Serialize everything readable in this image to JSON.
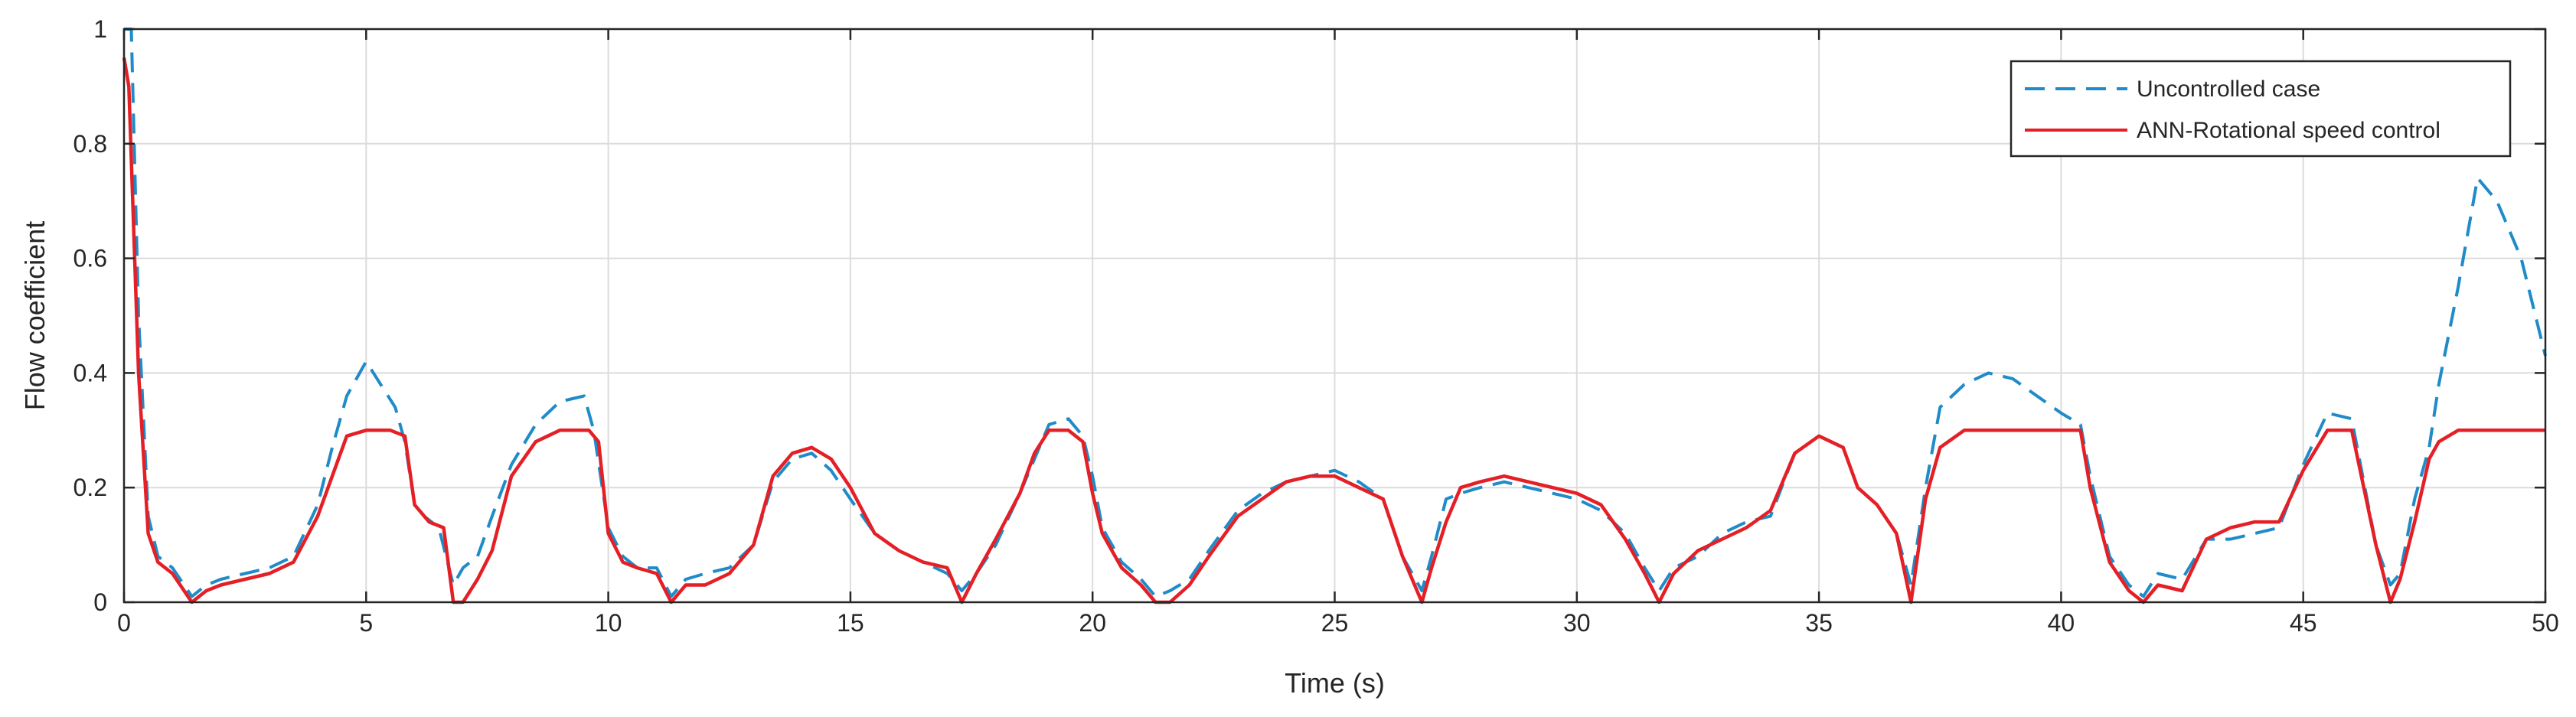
{
  "chart_data": {
    "type": "line",
    "title": "",
    "xlabel": "Time (s)",
    "ylabel": "Flow coefficient",
    "xlim": [
      0,
      50
    ],
    "ylim": [
      0,
      1
    ],
    "xticks": [
      0,
      5,
      10,
      15,
      20,
      25,
      30,
      35,
      40,
      45,
      50
    ],
    "yticks": [
      0,
      0.2,
      0.4,
      0.6,
      0.8,
      1
    ],
    "xtick_labels": [
      "0",
      "5",
      "10",
      "15",
      "20",
      "25",
      "30",
      "35",
      "40",
      "45",
      "50"
    ],
    "ytick_labels": [
      "0",
      "0.2",
      "0.4",
      "0.6",
      "0.8",
      "1"
    ],
    "grid": true,
    "legend_position": "top-right",
    "series": [
      {
        "name": "Uncontrolled case",
        "color": "#1f8bc8",
        "dash": "dashed",
        "points": [
          [
            0,
            1
          ],
          [
            0.15,
            1
          ],
          [
            0.3,
            0.5
          ],
          [
            0.5,
            0.15
          ],
          [
            0.7,
            0.08
          ],
          [
            1,
            0.06
          ],
          [
            1.4,
            0.01
          ],
          [
            1.7,
            0.03
          ],
          [
            2,
            0.04
          ],
          [
            2.5,
            0.05
          ],
          [
            3,
            0.06
          ],
          [
            3.5,
            0.08
          ],
          [
            4,
            0.17
          ],
          [
            4.3,
            0.27
          ],
          [
            4.6,
            0.36
          ],
          [
            5,
            0.42
          ],
          [
            5.3,
            0.38
          ],
          [
            5.6,
            0.34
          ],
          [
            5.8,
            0.28
          ],
          [
            6,
            0.17
          ],
          [
            6.2,
            0.15
          ],
          [
            6.5,
            0.13
          ],
          [
            6.8,
            0.03
          ],
          [
            7,
            0.06
          ],
          [
            7.3,
            0.08
          ],
          [
            7.6,
            0.15
          ],
          [
            8,
            0.24
          ],
          [
            8.5,
            0.31
          ],
          [
            9,
            0.35
          ],
          [
            9.5,
            0.36
          ],
          [
            9.7,
            0.3
          ],
          [
            10,
            0.13
          ],
          [
            10.3,
            0.08
          ],
          [
            10.6,
            0.06
          ],
          [
            11,
            0.06
          ],
          [
            11.3,
            0.01
          ],
          [
            11.6,
            0.04
          ],
          [
            12,
            0.05
          ],
          [
            12.5,
            0.06
          ],
          [
            13,
            0.1
          ],
          [
            13.4,
            0.21
          ],
          [
            13.8,
            0.25
          ],
          [
            14.2,
            0.26
          ],
          [
            14.6,
            0.23
          ],
          [
            15,
            0.18
          ],
          [
            15.5,
            0.12
          ],
          [
            16,
            0.09
          ],
          [
            16.5,
            0.07
          ],
          [
            17,
            0.05
          ],
          [
            17.3,
            0.02
          ],
          [
            17.6,
            0.05
          ],
          [
            18,
            0.1
          ],
          [
            18.5,
            0.19
          ],
          [
            18.8,
            0.25
          ],
          [
            19.1,
            0.31
          ],
          [
            19.5,
            0.32
          ],
          [
            19.8,
            0.29
          ],
          [
            20,
            0.22
          ],
          [
            20.2,
            0.13
          ],
          [
            20.6,
            0.07
          ],
          [
            21,
            0.04
          ],
          [
            21.3,
            0.01
          ],
          [
            21.6,
            0.02
          ],
          [
            22,
            0.04
          ],
          [
            22.4,
            0.09
          ],
          [
            23,
            0.16
          ],
          [
            23.5,
            0.19
          ],
          [
            24,
            0.21
          ],
          [
            24.5,
            0.22
          ],
          [
            25,
            0.23
          ],
          [
            25.5,
            0.21
          ],
          [
            26,
            0.18
          ],
          [
            26.4,
            0.08
          ],
          [
            26.8,
            0.02
          ],
          [
            27,
            0.08
          ],
          [
            27.3,
            0.18
          ],
          [
            27.6,
            0.19
          ],
          [
            28,
            0.2
          ],
          [
            28.5,
            0.21
          ],
          [
            29,
            0.2
          ],
          [
            29.5,
            0.19
          ],
          [
            30,
            0.18
          ],
          [
            30.5,
            0.16
          ],
          [
            31,
            0.12
          ],
          [
            31.4,
            0.06
          ],
          [
            31.7,
            0.02
          ],
          [
            32,
            0.06
          ],
          [
            32.5,
            0.08
          ],
          [
            33,
            0.12
          ],
          [
            33.5,
            0.14
          ],
          [
            34,
            0.15
          ],
          [
            34.5,
            0.26
          ],
          [
            35,
            0.29
          ],
          [
            35.5,
            0.27
          ],
          [
            35.8,
            0.2
          ],
          [
            36.2,
            0.17
          ],
          [
            36.6,
            0.12
          ],
          [
            36.9,
            0.03
          ],
          [
            37.2,
            0.2
          ],
          [
            37.5,
            0.34
          ],
          [
            38,
            0.38
          ],
          [
            38.5,
            0.4
          ],
          [
            39,
            0.39
          ],
          [
            39.5,
            0.36
          ],
          [
            40,
            0.33
          ],
          [
            40.4,
            0.31
          ],
          [
            40.6,
            0.22
          ],
          [
            41,
            0.08
          ],
          [
            41.4,
            0.03
          ],
          [
            41.7,
            0.01
          ],
          [
            42,
            0.05
          ],
          [
            42.5,
            0.04
          ],
          [
            43,
            0.11
          ],
          [
            43.5,
            0.11
          ],
          [
            44,
            0.12
          ],
          [
            44.5,
            0.13
          ],
          [
            45,
            0.24
          ],
          [
            45.5,
            0.33
          ],
          [
            46,
            0.32
          ],
          [
            46.5,
            0.1
          ],
          [
            46.8,
            0.03
          ],
          [
            47,
            0.05
          ],
          [
            47.3,
            0.18
          ],
          [
            47.6,
            0.27
          ],
          [
            47.8,
            0.38
          ],
          [
            48.2,
            0.55
          ],
          [
            48.6,
            0.74
          ],
          [
            49,
            0.7
          ],
          [
            49.5,
            0.6
          ],
          [
            50,
            0.43
          ]
        ]
      },
      {
        "name": "ANN-Rotational speed control",
        "color": "#e41f26",
        "dash": "solid",
        "points": [
          [
            0,
            0.95
          ],
          [
            0.1,
            0.9
          ],
          [
            0.3,
            0.4
          ],
          [
            0.5,
            0.12
          ],
          [
            0.7,
            0.07
          ],
          [
            1,
            0.05
          ],
          [
            1.4,
            0
          ],
          [
            1.7,
            0.02
          ],
          [
            2,
            0.03
          ],
          [
            2.5,
            0.04
          ],
          [
            3,
            0.05
          ],
          [
            3.5,
            0.07
          ],
          [
            4,
            0.15
          ],
          [
            4.3,
            0.22
          ],
          [
            4.6,
            0.29
          ],
          [
            5,
            0.3
          ],
          [
            5.5,
            0.3
          ],
          [
            5.8,
            0.29
          ],
          [
            6,
            0.17
          ],
          [
            6.3,
            0.14
          ],
          [
            6.6,
            0.13
          ],
          [
            6.8,
            0
          ],
          [
            7,
            0
          ],
          [
            7.3,
            0.04
          ],
          [
            7.6,
            0.09
          ],
          [
            8,
            0.22
          ],
          [
            8.5,
            0.28
          ],
          [
            9,
            0.3
          ],
          [
            9.6,
            0.3
          ],
          [
            9.8,
            0.28
          ],
          [
            10,
            0.12
          ],
          [
            10.3,
            0.07
          ],
          [
            10.6,
            0.06
          ],
          [
            11,
            0.05
          ],
          [
            11.3,
            0
          ],
          [
            11.6,
            0.03
          ],
          [
            12,
            0.03
          ],
          [
            12.5,
            0.05
          ],
          [
            13,
            0.1
          ],
          [
            13.4,
            0.22
          ],
          [
            13.8,
            0.26
          ],
          [
            14.2,
            0.27
          ],
          [
            14.6,
            0.25
          ],
          [
            15,
            0.2
          ],
          [
            15.5,
            0.12
          ],
          [
            16,
            0.09
          ],
          [
            16.5,
            0.07
          ],
          [
            17,
            0.06
          ],
          [
            17.3,
            0
          ],
          [
            17.6,
            0.05
          ],
          [
            18,
            0.11
          ],
          [
            18.5,
            0.19
          ],
          [
            18.8,
            0.26
          ],
          [
            19.1,
            0.3
          ],
          [
            19.5,
            0.3
          ],
          [
            19.8,
            0.28
          ],
          [
            20,
            0.19
          ],
          [
            20.2,
            0.12
          ],
          [
            20.6,
            0.06
          ],
          [
            21,
            0.03
          ],
          [
            21.3,
            0
          ],
          [
            21.6,
            0
          ],
          [
            22,
            0.03
          ],
          [
            22.4,
            0.08
          ],
          [
            23,
            0.15
          ],
          [
            23.5,
            0.18
          ],
          [
            24,
            0.21
          ],
          [
            24.5,
            0.22
          ],
          [
            25,
            0.22
          ],
          [
            25.5,
            0.2
          ],
          [
            26,
            0.18
          ],
          [
            26.4,
            0.08
          ],
          [
            26.8,
            0
          ],
          [
            27,
            0.06
          ],
          [
            27.3,
            0.14
          ],
          [
            27.6,
            0.2
          ],
          [
            28,
            0.21
          ],
          [
            28.5,
            0.22
          ],
          [
            29,
            0.21
          ],
          [
            29.5,
            0.2
          ],
          [
            30,
            0.19
          ],
          [
            30.5,
            0.17
          ],
          [
            31,
            0.11
          ],
          [
            31.4,
            0.05
          ],
          [
            31.7,
            0
          ],
          [
            32,
            0.05
          ],
          [
            32.5,
            0.09
          ],
          [
            33,
            0.11
          ],
          [
            33.5,
            0.13
          ],
          [
            34,
            0.16
          ],
          [
            34.5,
            0.26
          ],
          [
            35,
            0.29
          ],
          [
            35.5,
            0.27
          ],
          [
            35.8,
            0.2
          ],
          [
            36.2,
            0.17
          ],
          [
            36.6,
            0.12
          ],
          [
            36.9,
            0
          ],
          [
            37.2,
            0.18
          ],
          [
            37.5,
            0.27
          ],
          [
            38,
            0.3
          ],
          [
            38.5,
            0.3
          ],
          [
            39,
            0.3
          ],
          [
            39.5,
            0.3
          ],
          [
            40,
            0.3
          ],
          [
            40.4,
            0.3
          ],
          [
            40.6,
            0.2
          ],
          [
            41,
            0.07
          ],
          [
            41.4,
            0.02
          ],
          [
            41.7,
            0
          ],
          [
            42,
            0.03
          ],
          [
            42.5,
            0.02
          ],
          [
            43,
            0.11
          ],
          [
            43.5,
            0.13
          ],
          [
            44,
            0.14
          ],
          [
            44.5,
            0.14
          ],
          [
            45,
            0.23
          ],
          [
            45.5,
            0.3
          ],
          [
            46,
            0.3
          ],
          [
            46.5,
            0.1
          ],
          [
            46.8,
            0
          ],
          [
            47,
            0.04
          ],
          [
            47.3,
            0.14
          ],
          [
            47.6,
            0.25
          ],
          [
            47.8,
            0.28
          ],
          [
            48.2,
            0.3
          ],
          [
            48.6,
            0.3
          ],
          [
            49,
            0.3
          ],
          [
            49.5,
            0.3
          ],
          [
            50,
            0.3
          ]
        ]
      }
    ]
  }
}
